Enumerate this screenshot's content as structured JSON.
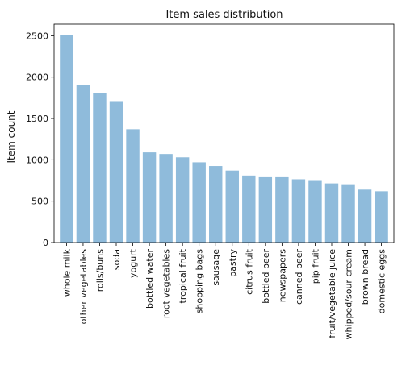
{
  "chart_data": {
    "type": "bar",
    "title": "Item sales distribution",
    "xlabel": "",
    "ylabel": "Item count",
    "categories": [
      "whole milk",
      "other vegetables",
      "rolls/buns",
      "soda",
      "yogurt",
      "bottled water",
      "root vegetables",
      "tropical fruit",
      "shopping bags",
      "sausage",
      "pastry",
      "citrus fruit",
      "bottled beer",
      "newspapers",
      "canned beer",
      "pip fruit",
      "fruit/vegetable juice",
      "whipped/sour cream",
      "brown bread",
      "domestic eggs"
    ],
    "values": [
      2510,
      1900,
      1810,
      1710,
      1370,
      1090,
      1070,
      1030,
      970,
      925,
      870,
      810,
      790,
      790,
      765,
      745,
      715,
      705,
      640,
      620
    ],
    "ylim": [
      0,
      2640
    ],
    "y_ticks": [
      0,
      500,
      1000,
      1500,
      2000,
      2500
    ],
    "bar_color": "#8fbbdb",
    "grid": false
  }
}
